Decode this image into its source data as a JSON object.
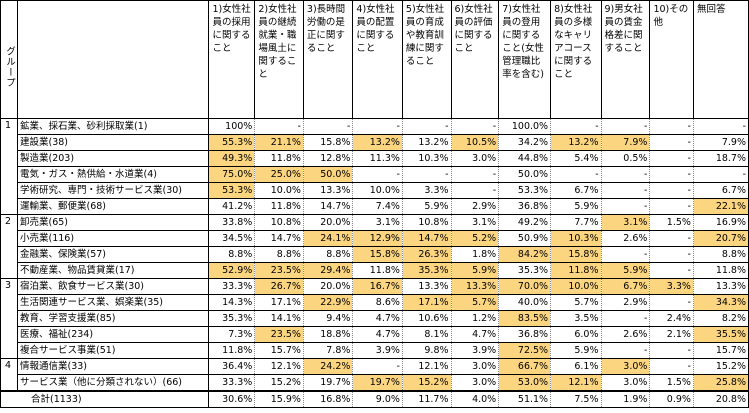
{
  "group_label": "グループ",
  "columns": [
    "1)女性社員の採用に関すること",
    "2)女性社員の継続就業・職場風土に関すること",
    "3)長時間労働の是正に関すること",
    "4)女性社員の配置に関すること",
    "5)女性社員の育成や教育訓練に関すること",
    "6)女性社員の評価に関すること",
    "7)女性社員の登用に関すること(女性管理職比率を含む)",
    "8)女性社員の多様なキャリアコースに関すること",
    "9)男女社員の賃金格差に関すること",
    "10)その他",
    "無回答"
  ],
  "rows": [
    {
      "group": "1",
      "name": "鉱業、採石業、砂利採取業(1)",
      "values": [
        "100%",
        "-",
        "-",
        "-",
        "-",
        "-",
        "100.0%",
        "-",
        "-",
        "-",
        "-"
      ],
      "hl": [],
      "pos": "first"
    },
    {
      "group": "",
      "name": "建設業(38)",
      "values": [
        "55.3%",
        "21.1%",
        "15.8%",
        "13.2%",
        "13.2%",
        "10.5%",
        "34.2%",
        "13.2%",
        "7.9%",
        "-",
        "7.9%"
      ],
      "hl": [
        0,
        1,
        3,
        5,
        7,
        8
      ],
      "pos": "inner"
    },
    {
      "group": "",
      "name": "製造業(203)",
      "values": [
        "49.3%",
        "11.8%",
        "12.8%",
        "11.3%",
        "10.3%",
        "3.0%",
        "44.8%",
        "5.4%",
        "0.5%",
        "-",
        "18.7%"
      ],
      "hl": [
        0
      ],
      "pos": "inner"
    },
    {
      "group": "",
      "name": "電気・ガス・熱供給・水道業(4)",
      "values": [
        "75.0%",
        "25.0%",
        "50.0%",
        "-",
        "-",
        "-",
        "50.0%",
        "-",
        "-",
        "-",
        "-"
      ],
      "hl": [
        0,
        1,
        2
      ],
      "pos": "inner"
    },
    {
      "group": "",
      "name": "学術研究、専門・技術サービス業(30)",
      "values": [
        "53.3%",
        "10.0%",
        "13.3%",
        "10.0%",
        "3.3%",
        "-",
        "53.3%",
        "6.7%",
        "-",
        "-",
        "6.7%"
      ],
      "hl": [
        0
      ],
      "pos": "inner"
    },
    {
      "group": "",
      "name": "運輸業、郵便業(68)",
      "values": [
        "41.2%",
        "11.8%",
        "14.7%",
        "7.4%",
        "5.9%",
        "2.9%",
        "36.8%",
        "5.9%",
        "-",
        "-",
        "22.1%"
      ],
      "hl": [
        10
      ],
      "pos": "inner"
    },
    {
      "group": "2",
      "name": "卸売業(65)",
      "values": [
        "33.8%",
        "10.8%",
        "20.0%",
        "3.1%",
        "10.8%",
        "3.1%",
        "49.2%",
        "7.7%",
        "3.1%",
        "1.5%",
        "16.9%"
      ],
      "hl": [
        8
      ],
      "pos": "first"
    },
    {
      "group": "",
      "name": "小売業(116)",
      "values": [
        "34.5%",
        "14.7%",
        "24.1%",
        "12.9%",
        "14.7%",
        "5.2%",
        "50.9%",
        "10.3%",
        "2.6%",
        "-",
        "20.7%"
      ],
      "hl": [
        2,
        3,
        4,
        5,
        7,
        10
      ],
      "pos": "inner"
    },
    {
      "group": "",
      "name": "金融業、保険業(57)",
      "values": [
        "8.8%",
        "8.8%",
        "8.8%",
        "15.8%",
        "26.3%",
        "1.8%",
        "84.2%",
        "15.8%",
        "-",
        "-",
        "8.8%"
      ],
      "hl": [
        3,
        4,
        6,
        7
      ],
      "pos": "inner"
    },
    {
      "group": "",
      "name": "不動産業、物品賃貸業(17)",
      "values": [
        "52.9%",
        "23.5%",
        "29.4%",
        "11.8%",
        "35.3%",
        "5.9%",
        "35.3%",
        "11.8%",
        "5.9%",
        "-",
        "11.8%"
      ],
      "hl": [
        0,
        1,
        2,
        4,
        5,
        7,
        8
      ],
      "pos": "inner"
    },
    {
      "group": "3",
      "name": "宿泊業、飲食サービス業(30)",
      "values": [
        "33.3%",
        "26.7%",
        "20.0%",
        "16.7%",
        "13.3%",
        "13.3%",
        "70.0%",
        "10.0%",
        "6.7%",
        "3.3%",
        "13.3%"
      ],
      "hl": [
        1,
        3,
        5,
        6,
        7,
        8,
        9
      ],
      "pos": "first"
    },
    {
      "group": "",
      "name": "生活関連サービス業、娯楽業(35)",
      "values": [
        "14.3%",
        "17.1%",
        "22.9%",
        "8.6%",
        "17.1%",
        "5.7%",
        "40.0%",
        "5.7%",
        "2.9%",
        "-",
        "34.3%"
      ],
      "hl": [
        2,
        4,
        5,
        10
      ],
      "pos": "inner"
    },
    {
      "group": "",
      "name": "教育、学習支援業(85)",
      "values": [
        "35.3%",
        "14.1%",
        "9.4%",
        "4.7%",
        "10.6%",
        "1.2%",
        "83.5%",
        "3.5%",
        "-",
        "2.4%",
        "8.2%"
      ],
      "hl": [
        6
      ],
      "pos": "inner"
    },
    {
      "group": "",
      "name": "医療、福祉(234)",
      "values": [
        "7.3%",
        "23.5%",
        "18.8%",
        "4.7%",
        "8.1%",
        "4.7%",
        "36.8%",
        "6.0%",
        "2.6%",
        "2.1%",
        "35.5%"
      ],
      "hl": [
        1,
        10
      ],
      "pos": "inner"
    },
    {
      "group": "",
      "name": "複合サービス事業(51)",
      "values": [
        "11.8%",
        "15.7%",
        "7.8%",
        "3.9%",
        "9.8%",
        "3.9%",
        "72.5%",
        "5.9%",
        "-",
        "-",
        "15.7%"
      ],
      "hl": [
        6
      ],
      "pos": "inner"
    },
    {
      "group": "4",
      "name": "情報通信業(33)",
      "values": [
        "36.4%",
        "12.1%",
        "24.2%",
        "-",
        "12.1%",
        "3.0%",
        "66.7%",
        "6.1%",
        "3.0%",
        "-",
        "15.2%"
      ],
      "hl": [
        2,
        6,
        8
      ],
      "pos": "first"
    },
    {
      "group": "",
      "name": "サービス業（他に分類されない）(66)",
      "values": [
        "33.3%",
        "15.2%",
        "19.7%",
        "19.7%",
        "15.2%",
        "3.0%",
        "53.0%",
        "12.1%",
        "3.0%",
        "1.5%",
        "25.8%"
      ],
      "hl": [
        3,
        4,
        6,
        7,
        10
      ],
      "pos": "inner"
    }
  ],
  "total": {
    "name": "合計(1133)",
    "values": [
      "30.6%",
      "15.9%",
      "16.8%",
      "9.0%",
      "11.7%",
      "4.0%",
      "51.1%",
      "7.5%",
      "1.9%",
      "0.9%",
      "20.8%"
    ]
  },
  "colors": {
    "highlight": "#fcd581",
    "border": "#000000",
    "dotted": "#888888"
  }
}
